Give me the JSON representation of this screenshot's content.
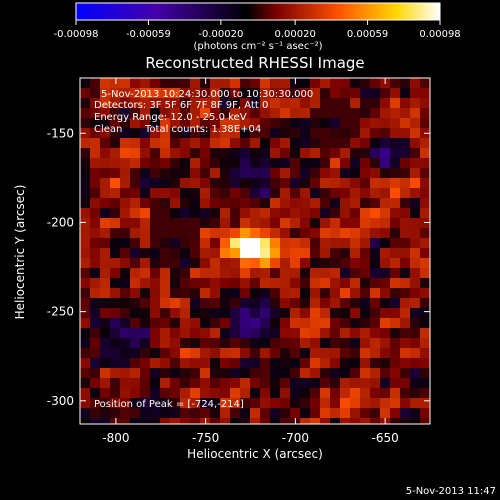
{
  "colorbar": {
    "tick_labels": [
      "-0.00098",
      "-0.00059",
      "-0.00020",
      "0.00020",
      "0.00059",
      "0.00098"
    ],
    "tick_values": [
      -0.00098,
      -0.00059,
      -0.0002,
      0.0002,
      0.00059,
      0.00098
    ],
    "range": [
      -0.00098,
      0.00098
    ],
    "units_label": "(photons cm⁻² s⁻¹ asec⁻²)",
    "colors": [
      "#0000ff",
      "#4400aa",
      "#000000",
      "#7a0000",
      "#ff5000",
      "#ffd700",
      "#ffffff"
    ]
  },
  "chart_data": {
    "type": "heatmap",
    "title": "Reconstructed RHESSI Image",
    "xlabel": "Heliocentric X (arcsec)",
    "ylabel": "Heliocentric Y (arcsec)",
    "xlim": [
      -820,
      -625
    ],
    "ylim": [
      -313,
      -119
    ],
    "x_ticks": [
      -800,
      -750,
      -700,
      -650
    ],
    "y_ticks": [
      -300,
      -250,
      -200,
      -150
    ],
    "x_tick_labels": [
      "-800",
      "-750",
      "-700",
      "-650"
    ],
    "y_tick_labels": [
      "-300",
      "-250",
      "-200",
      "-150"
    ],
    "peak": {
      "x": -724,
      "y": -214
    },
    "annotations": [
      "5-Nov-2013 10:24:30.000 to 10:30:30.000",
      "Detectors: 3F 5F 6F 7F 8F 9F, Att 0",
      "Energy Range: 12.0 - 25.0 keV",
      "Clean",
      "Total counts: 1.38E+04"
    ],
    "peak_label": "Position of Peak = [-724,-214]"
  },
  "footer": {
    "timestamp": "5-Nov-2013 11:47"
  }
}
